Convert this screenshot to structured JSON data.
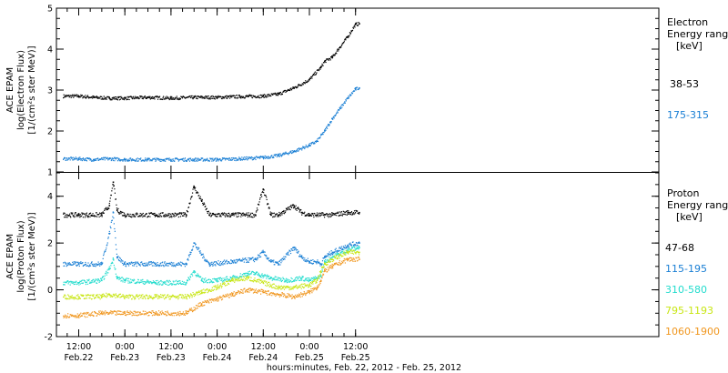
{
  "chart_data": [
    {
      "type": "scatter",
      "panel": "electron",
      "ylabel_lines": [
        "ACE EPAM",
        "log(Electron Flux)",
        "[1/(cm²s ster MeV)]"
      ],
      "legend_title_lines": [
        "Electron",
        "Energy ranges",
        "[keV]"
      ],
      "ylim": [
        1,
        5
      ],
      "yticks": [
        1,
        2,
        3,
        4,
        5
      ],
      "series": [
        {
          "name": "38-53",
          "color": "#000000",
          "x": [
            0,
            4,
            8,
            12,
            18,
            24,
            30,
            36,
            42,
            48,
            52,
            56,
            60,
            63,
            64,
            66,
            68,
            70,
            72,
            73
          ],
          "y": [
            2.85,
            2.82,
            2.8,
            2.8,
            2.82,
            2.8,
            2.82,
            2.82,
            2.84,
            2.85,
            2.9,
            3.05,
            3.25,
            3.55,
            3.7,
            3.8,
            4.05,
            4.3,
            4.6,
            4.62
          ]
        },
        {
          "name": "175-315",
          "color": "#1a7fd4",
          "x": [
            0,
            4,
            8,
            12,
            18,
            24,
            30,
            36,
            42,
            48,
            52,
            56,
            60,
            62,
            64,
            66,
            68,
            70,
            72,
            73
          ],
          "y": [
            1.32,
            1.3,
            1.32,
            1.3,
            1.3,
            1.3,
            1.3,
            1.3,
            1.32,
            1.35,
            1.4,
            1.5,
            1.65,
            1.75,
            2.0,
            2.3,
            2.55,
            2.8,
            3.02,
            3.05
          ]
        }
      ]
    },
    {
      "type": "scatter",
      "panel": "proton",
      "ylabel_lines": [
        "ACE EPAM",
        "log(Proton Flux)",
        "[1/(cm²s ster MeV)]"
      ],
      "legend_title_lines": [
        "Proton",
        "Energy ranges",
        "[keV]"
      ],
      "ylim": [
        -2,
        5
      ],
      "yticks": [
        -2,
        0,
        2,
        4
      ],
      "xlabel": "hours:minutes, Feb. 22, 2012 - Feb. 25, 2012",
      "xticks": [
        {
          "time": "12:00",
          "date": "Feb.22"
        },
        {
          "time": "0:00",
          "date": "Feb.23"
        },
        {
          "time": "12:00",
          "date": "Feb.23"
        },
        {
          "time": "0:00",
          "date": "Feb.24"
        },
        {
          "time": "12:00",
          "date": "Feb.24"
        },
        {
          "time": "0:00",
          "date": "Feb.25"
        },
        {
          "time": "12:00",
          "date": "Feb.25"
        }
      ],
      "series": [
        {
          "name": "47-68",
          "color": "#000000",
          "x": [
            0,
            6,
            8,
            9,
            10,
            12,
            20,
            28,
            30,
            32,
            34,
            40,
            46,
            48,
            50,
            52,
            56,
            58,
            60,
            62,
            64,
            66,
            70,
            73
          ],
          "y": [
            3.2,
            3.2,
            3.6,
            4.6,
            3.4,
            3.2,
            3.2,
            3.2,
            4.4,
            3.8,
            3.2,
            3.2,
            3.2,
            4.3,
            3.2,
            3.2,
            3.6,
            3.3,
            3.2,
            3.2,
            3.2,
            3.2,
            3.3,
            3.3
          ]
        },
        {
          "name": "115-195",
          "color": "#1a7fd4",
          "x": [
            0,
            6,
            8,
            9,
            10,
            12,
            20,
            28,
            30,
            32,
            34,
            40,
            46,
            48,
            50,
            52,
            56,
            58,
            60,
            62,
            63,
            64,
            66,
            70,
            73
          ],
          "y": [
            1.1,
            1.1,
            2.4,
            3.3,
            1.4,
            1.1,
            1.1,
            1.1,
            2.0,
            1.5,
            1.1,
            1.2,
            1.3,
            1.6,
            1.2,
            1.1,
            1.8,
            1.4,
            1.2,
            1.2,
            1.1,
            1.4,
            1.6,
            1.9,
            2.0
          ]
        },
        {
          "name": "310-580",
          "color": "#22dccd",
          "x": [
            0,
            6,
            8,
            9,
            10,
            12,
            20,
            28,
            30,
            32,
            36,
            40,
            44,
            46,
            48,
            50,
            54,
            58,
            60,
            62,
            63,
            64,
            66,
            70,
            73
          ],
          "y": [
            0.3,
            0.4,
            0.9,
            1.3,
            0.5,
            0.4,
            0.3,
            0.3,
            0.8,
            0.4,
            0.4,
            0.5,
            0.7,
            0.7,
            0.6,
            0.5,
            0.4,
            0.5,
            0.4,
            0.5,
            0.6,
            1.2,
            1.4,
            1.7,
            1.8
          ]
        },
        {
          "name": "795-1193",
          "color": "#c8e614",
          "x": [
            0,
            6,
            8,
            12,
            20,
            28,
            32,
            36,
            40,
            44,
            48,
            52,
            56,
            60,
            62,
            63,
            64,
            66,
            70,
            73
          ],
          "y": [
            -0.3,
            -0.3,
            -0.2,
            -0.3,
            -0.3,
            -0.3,
            -0.1,
            0.1,
            0.4,
            0.5,
            0.3,
            0.1,
            0.1,
            0.2,
            0.4,
            0.8,
            1.1,
            1.3,
            1.6,
            1.6
          ]
        },
        {
          "name": "1060-1900",
          "color": "#f0961e",
          "x": [
            0,
            6,
            12,
            20,
            28,
            32,
            36,
            40,
            44,
            48,
            52,
            56,
            60,
            62,
            63,
            64,
            66,
            70,
            73
          ],
          "y": [
            -1.1,
            -1.0,
            -1.0,
            -1.0,
            -1.0,
            -0.6,
            -0.4,
            -0.2,
            0.0,
            -0.1,
            -0.2,
            -0.3,
            -0.1,
            0.1,
            0.4,
            0.8,
            1.0,
            1.3,
            1.3
          ]
        }
      ]
    }
  ]
}
